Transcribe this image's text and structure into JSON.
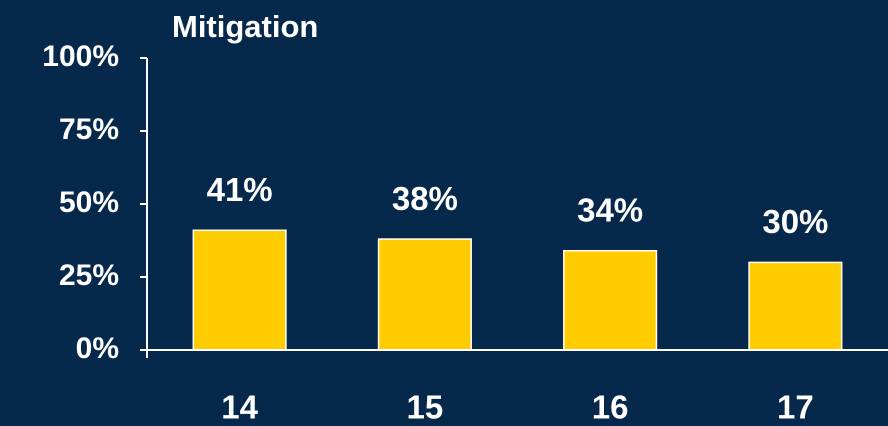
{
  "chart_data": {
    "type": "bar",
    "title": "Mitigation",
    "categories": [
      "14",
      "15",
      "16",
      "17"
    ],
    "values": [
      41,
      38,
      34,
      30
    ],
    "value_labels": [
      "41%",
      "38%",
      "34%",
      "30%"
    ],
    "color": "#ffcc00",
    "ylim": [
      0,
      100
    ],
    "yticks": [
      {
        "value": 0,
        "label": "0%"
      },
      {
        "value": 25,
        "label": "25%"
      },
      {
        "value": 50,
        "label": "50%"
      },
      {
        "value": 75,
        "label": "75%"
      },
      {
        "value": 100,
        "label": "100%"
      }
    ],
    "grid": false
  }
}
